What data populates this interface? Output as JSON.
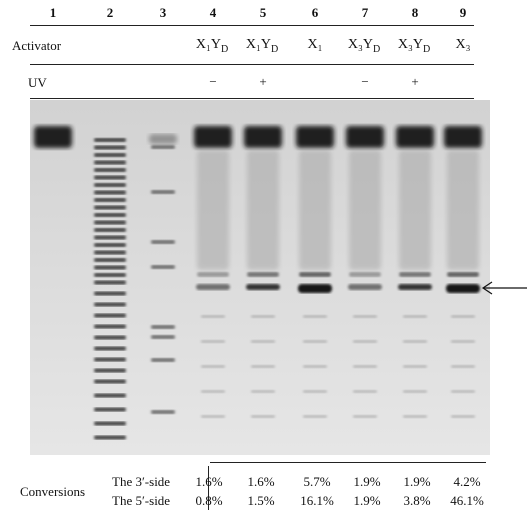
{
  "lanes": [
    "1",
    "2",
    "3",
    "4",
    "5",
    "6",
    "7",
    "8",
    "9"
  ],
  "row_labels": {
    "activator": "Activator",
    "uv": "UV"
  },
  "activators": {
    "l4": "X₁Y",
    "l5": "X₁Y",
    "l6": "X₁",
    "l7": "X₃Y",
    "l8": "X₃Y",
    "l9": "X₃",
    "sub_d": "D"
  },
  "uv_marks": {
    "l4": "−",
    "l5": "+",
    "l7": "−",
    "l8": "+"
  },
  "conversions": {
    "label": "Conversions",
    "three_prime_label": "The 3′-side",
    "five_prime_label": "The 5′-side",
    "three_prime": [
      "1.6%",
      "1.6%",
      "5.7%",
      "1.9%",
      "1.9%",
      "4.2%"
    ],
    "five_prime": [
      "0.8%",
      "1.5%",
      "16.1%",
      "1.9%",
      "3.8%",
      "46.1%"
    ]
  },
  "colors": {
    "gel_bg": "#dcdcdc",
    "band_dark": "#141414"
  }
}
